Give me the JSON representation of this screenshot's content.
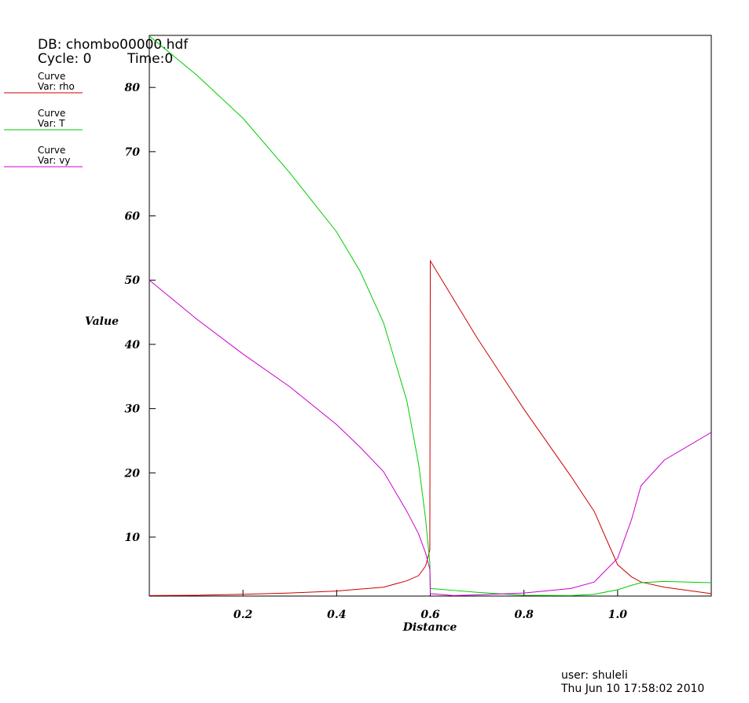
{
  "chart_data": {
    "type": "line",
    "db_label": "DB: chombo00000.hdf",
    "cycle_label": "Cycle: 0",
    "time_label": "Time:0",
    "x_label": "Distance",
    "y_label": "Value",
    "user_label": "user: shuleli",
    "date_label": "Thu Jun 10 17:58:02 2010",
    "x": [
      0,
      0.1,
      0.2,
      0.3,
      0.4,
      0.45,
      0.5,
      0.55,
      0.575,
      0.59,
      0.599,
      0.6,
      0.65,
      0.7,
      0.8,
      0.9,
      0.95,
      1.0,
      1.03,
      1.05,
      1.1,
      1.2
    ],
    "series": [
      {
        "label": "Curve",
        "name": "Var: rho",
        "color": "#cc0000",
        "values": [
          0.9,
          0.95,
          1.1,
          1.3,
          1.6,
          1.9,
          2.2,
          3.2,
          4.0,
          5.5,
          8,
          53,
          47,
          41,
          29.9,
          19.5,
          14,
          5.7,
          3.8,
          3,
          2.2,
          1.2
        ]
      },
      {
        "label": "Curve",
        "name": "Var: T",
        "color": "#00cc00",
        "values": [
          88,
          82,
          75.2,
          66.7,
          57.5,
          51.4,
          43.4,
          31.2,
          21.4,
          12.8,
          6,
          2.0,
          1.7,
          1.4,
          0.94,
          0.9,
          1.1,
          1.8,
          2.5,
          2.9,
          3.1,
          2.9
        ]
      },
      {
        "label": "Curve",
        "name": "Var: vy",
        "color": "#cc00cc",
        "values": [
          50,
          44,
          38.5,
          33.4,
          27.5,
          24,
          20.2,
          14,
          10.5,
          7.5,
          5,
          1.2,
          0.9,
          1.0,
          1.3,
          2.0,
          3.0,
          6.7,
          12.8,
          18,
          22,
          26.3
        ]
      }
    ],
    "xlim": [
      0,
      1.2
    ],
    "ylim": [
      0.82,
      88.1
    ],
    "xticks": [
      0.2,
      0.4,
      0.6,
      0.8,
      {
        "value": 1,
        "label": "1.0"
      }
    ],
    "yticks": [
      10,
      20,
      30,
      40,
      50,
      60,
      70,
      80
    ]
  }
}
